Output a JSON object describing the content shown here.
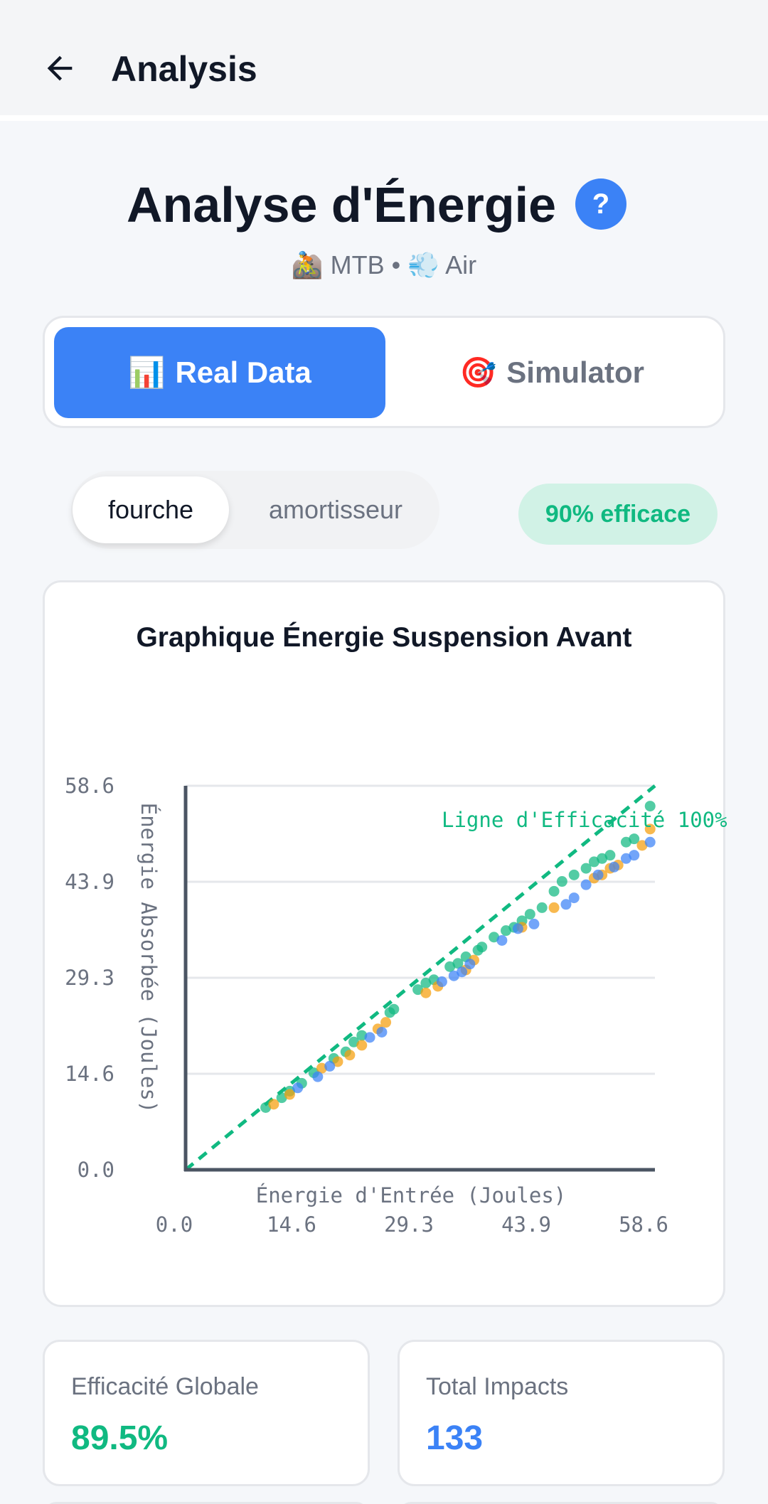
{
  "appbar": {
    "title": "Analysis",
    "back_icon": "arrow-left-icon"
  },
  "header": {
    "title": "Analyse d'Énergie",
    "help_label": "?",
    "subtitle": "🚵 MTB • 💨 Air"
  },
  "mode_tabs": [
    {
      "emoji": "📊",
      "label": "Real Data",
      "active": true
    },
    {
      "emoji": "🎯",
      "label": "Simulator",
      "active": false
    }
  ],
  "component_toggle": {
    "options": [
      "fourche",
      "amortisseur"
    ],
    "selected": "fourche"
  },
  "efficiency_badge": "90% efficace",
  "colors": {
    "accent": "#3b82f6",
    "green": "#10b981",
    "orange": "#f59e0b"
  },
  "chart_data": {
    "type": "scatter",
    "title": "Graphique Énergie Suspension Avant",
    "xlabel": "Énergie d'Entrée (Joules)",
    "ylabel": "Énergie Absorbée (Joules)",
    "xlim": [
      0,
      58.6
    ],
    "ylim": [
      0,
      58.6
    ],
    "xticks": [
      "0.0",
      "14.6",
      "29.3",
      "43.9",
      "58.6"
    ],
    "yticks": [
      "0.0",
      "14.6",
      "29.3",
      "43.9",
      "58.6"
    ],
    "grid": true,
    "reference_line": {
      "label": "Ligne d'Efficacité 100%",
      "x": [
        0,
        58.6
      ],
      "y": [
        0,
        58.6
      ]
    },
    "series": [
      {
        "color": "#10b981",
        "points": [
          [
            10.0,
            9.5
          ],
          [
            12.0,
            11.0
          ],
          [
            13.0,
            12.0
          ],
          [
            14.5,
            13.2
          ],
          [
            16.0,
            14.8
          ],
          [
            18.5,
            17.0
          ],
          [
            20.0,
            18.0
          ],
          [
            21.0,
            19.5
          ],
          [
            26.0,
            24.5
          ],
          [
            29.0,
            27.5
          ],
          [
            30.0,
            28.5
          ],
          [
            31.0,
            29.0
          ],
          [
            33.0,
            31.0
          ],
          [
            34.0,
            31.5
          ],
          [
            36.5,
            33.5
          ],
          [
            37.0,
            34.0
          ],
          [
            38.5,
            35.5
          ],
          [
            40.0,
            36.5
          ],
          [
            41.0,
            37.0
          ],
          [
            42.0,
            38.0
          ],
          [
            43.0,
            39.0
          ],
          [
            44.5,
            40.0
          ],
          [
            46.0,
            42.5
          ],
          [
            47.0,
            44.0
          ],
          [
            48.5,
            45.0
          ],
          [
            50.0,
            46.0
          ],
          [
            51.0,
            47.0
          ],
          [
            52.0,
            47.5
          ],
          [
            53.0,
            48.0
          ],
          [
            55.0,
            50.0
          ],
          [
            56.0,
            50.5
          ],
          [
            58.0,
            55.5
          ],
          [
            22.0,
            20.5
          ],
          [
            35.0,
            32.5
          ],
          [
            25.5,
            24.0
          ]
        ]
      },
      {
        "color": "#f59e0b",
        "points": [
          [
            11.0,
            10.0
          ],
          [
            13.0,
            11.5
          ],
          [
            17.0,
            15.5
          ],
          [
            19.0,
            16.5
          ],
          [
            22.0,
            19.0
          ],
          [
            24.0,
            21.5
          ],
          [
            25.0,
            22.5
          ],
          [
            30.0,
            27.0
          ],
          [
            31.5,
            28.0
          ],
          [
            35.0,
            30.5
          ],
          [
            36.0,
            32.0
          ],
          [
            42.0,
            37.0
          ],
          [
            46.0,
            40.0
          ],
          [
            51.0,
            44.5
          ],
          [
            52.0,
            45.0
          ],
          [
            53.0,
            46.0
          ],
          [
            54.0,
            46.5
          ],
          [
            57.0,
            49.5
          ],
          [
            58.0,
            52.0
          ],
          [
            20.5,
            17.5
          ]
        ]
      },
      {
        "color": "#3b82f6",
        "points": [
          [
            14.0,
            12.5
          ],
          [
            16.5,
            14.2
          ],
          [
            18.0,
            15.8
          ],
          [
            23.0,
            20.2
          ],
          [
            24.5,
            21.0
          ],
          [
            32.0,
            28.7
          ],
          [
            33.5,
            29.6
          ],
          [
            34.5,
            30.2
          ],
          [
            35.5,
            31.4
          ],
          [
            39.5,
            35.0
          ],
          [
            41.5,
            36.8
          ],
          [
            43.5,
            37.5
          ],
          [
            47.5,
            40.5
          ],
          [
            48.5,
            41.5
          ],
          [
            50.0,
            43.5
          ],
          [
            51.5,
            45.0
          ],
          [
            53.5,
            46.2
          ],
          [
            55.0,
            47.5
          ],
          [
            56.0,
            48.0
          ],
          [
            58.0,
            50.0
          ]
        ]
      }
    ]
  },
  "stats": [
    {
      "label": "Efficacité Globale",
      "value": "89.5%",
      "color": "#10b981"
    },
    {
      "label": "Total Impacts",
      "value": "133",
      "color": "#3b82f6"
    }
  ]
}
